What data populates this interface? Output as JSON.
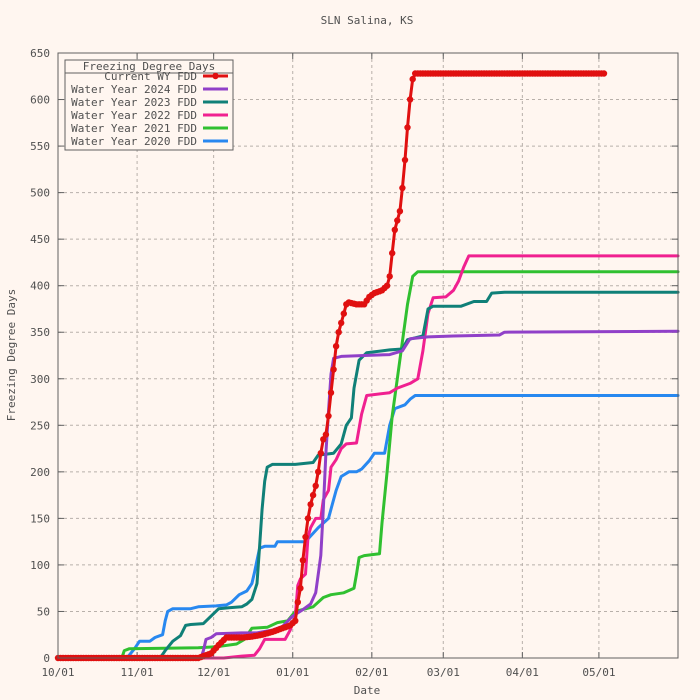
{
  "chart_data": {
    "type": "line",
    "title": "SLN Salina, KS",
    "xlabel": "Date",
    "ylabel": "Freezing Degree Days",
    "xlim": [
      "10/01",
      "06/01"
    ],
    "ylim": [
      0,
      650
    ],
    "yticks": [
      0,
      50,
      100,
      150,
      200,
      250,
      300,
      350,
      400,
      450,
      500,
      550,
      600,
      650
    ],
    "xticks": [
      {
        "label": "10/01",
        "day": 0
      },
      {
        "label": "11/01",
        "day": 31
      },
      {
        "label": "12/01",
        "day": 61
      },
      {
        "label": "01/01",
        "day": 92
      },
      {
        "label": "02/01",
        "day": 123
      },
      {
        "label": "03/01",
        "day": 151
      },
      {
        "label": "04/01",
        "day": 182
      },
      {
        "label": "05/01",
        "day": 212
      }
    ],
    "x_axis_end_day": 243,
    "grid": true,
    "legend": {
      "title": "Freezing Degree Days",
      "position": "top-left"
    },
    "series": [
      {
        "name": "Current WY FDD",
        "color": "#e01010",
        "markers": true,
        "points": [
          [
            0,
            0
          ],
          [
            55,
            0
          ],
          [
            60,
            5
          ],
          [
            63,
            14
          ],
          [
            66,
            22
          ],
          [
            72,
            22
          ],
          [
            76,
            23
          ],
          [
            80,
            25
          ],
          [
            84,
            28
          ],
          [
            88,
            32
          ],
          [
            91,
            35
          ],
          [
            93,
            40
          ],
          [
            94,
            60
          ],
          [
            95,
            75
          ],
          [
            96,
            105
          ],
          [
            97,
            130
          ],
          [
            98,
            150
          ],
          [
            99,
            165
          ],
          [
            100,
            175
          ],
          [
            101,
            185
          ],
          [
            102,
            200
          ],
          [
            103,
            220
          ],
          [
            104,
            235
          ],
          [
            105,
            240
          ],
          [
            106,
            260
          ],
          [
            107,
            285
          ],
          [
            108,
            310
          ],
          [
            109,
            335
          ],
          [
            110,
            350
          ],
          [
            111,
            360
          ],
          [
            112,
            370
          ],
          [
            113,
            380
          ],
          [
            114,
            382
          ],
          [
            117,
            380
          ],
          [
            120,
            380
          ],
          [
            122,
            388
          ],
          [
            124,
            392
          ],
          [
            127,
            395
          ],
          [
            129,
            400
          ],
          [
            130,
            410
          ],
          [
            131,
            435
          ],
          [
            132,
            460
          ],
          [
            133,
            470
          ],
          [
            134,
            480
          ],
          [
            135,
            505
          ],
          [
            136,
            535
          ],
          [
            137,
            570
          ],
          [
            138,
            600
          ],
          [
            139,
            622
          ],
          [
            140,
            628
          ],
          [
            160,
            628
          ],
          [
            180,
            628
          ],
          [
            210,
            628
          ],
          [
            214,
            628
          ]
        ]
      },
      {
        "name": "Water Year 2024 FDD",
        "color": "#9040c8",
        "markers": false,
        "points": [
          [
            0,
            0
          ],
          [
            56,
            0
          ],
          [
            57,
            8
          ],
          [
            58,
            20
          ],
          [
            60,
            22
          ],
          [
            62,
            26
          ],
          [
            72,
            27
          ],
          [
            78,
            27
          ],
          [
            84,
            30
          ],
          [
            88,
            34
          ],
          [
            92,
            45
          ],
          [
            96,
            52
          ],
          [
            99,
            58
          ],
          [
            101,
            70
          ],
          [
            103,
            110
          ],
          [
            104,
            160
          ],
          [
            105,
            220
          ],
          [
            106,
            265
          ],
          [
            107,
            305
          ],
          [
            108,
            322
          ],
          [
            111,
            324
          ],
          [
            120,
            325
          ],
          [
            130,
            326
          ],
          [
            135,
            330
          ],
          [
            138,
            343
          ],
          [
            145,
            345
          ],
          [
            155,
            346
          ],
          [
            173,
            347
          ],
          [
            175,
            350
          ],
          [
            243,
            351
          ]
        ]
      },
      {
        "name": "Water Year 2023 FDD",
        "color": "#108078",
        "markers": false,
        "points": [
          [
            0,
            0
          ],
          [
            40,
            0
          ],
          [
            42,
            8
          ],
          [
            45,
            18
          ],
          [
            48,
            24
          ],
          [
            50,
            35
          ],
          [
            52,
            36
          ],
          [
            57,
            37
          ],
          [
            60,
            45
          ],
          [
            63,
            53
          ],
          [
            67,
            54
          ],
          [
            72,
            55
          ],
          [
            74,
            58
          ],
          [
            76,
            63
          ],
          [
            78,
            80
          ],
          [
            79,
            120
          ],
          [
            80,
            160
          ],
          [
            81,
            190
          ],
          [
            82,
            205
          ],
          [
            84,
            208
          ],
          [
            93,
            208
          ],
          [
            100,
            210
          ],
          [
            102,
            218
          ],
          [
            108,
            220
          ],
          [
            111,
            230
          ],
          [
            113,
            250
          ],
          [
            115,
            258
          ],
          [
            116,
            290
          ],
          [
            118,
            320
          ],
          [
            121,
            328
          ],
          [
            130,
            331
          ],
          [
            135,
            332
          ],
          [
            137,
            342
          ],
          [
            143,
            346
          ],
          [
            145,
            375
          ],
          [
            147,
            378
          ],
          [
            158,
            378
          ],
          [
            163,
            383
          ],
          [
            168,
            383
          ],
          [
            170,
            392
          ],
          [
            175,
            393
          ],
          [
            243,
            393
          ]
        ]
      },
      {
        "name": "Water Year 2022 FDD",
        "color": "#f02090",
        "markers": false,
        "points": [
          [
            0,
            0
          ],
          [
            65,
            0
          ],
          [
            72,
            2
          ],
          [
            77,
            3
          ],
          [
            79,
            10
          ],
          [
            81,
            20
          ],
          [
            89,
            20
          ],
          [
            91,
            30
          ],
          [
            93,
            45
          ],
          [
            94,
            78
          ],
          [
            95,
            85
          ],
          [
            97,
            90
          ],
          [
            98,
            130
          ],
          [
            99,
            140
          ],
          [
            101,
            150
          ],
          [
            103,
            150
          ],
          [
            104,
            170
          ],
          [
            106,
            180
          ],
          [
            107,
            205
          ],
          [
            109,
            213
          ],
          [
            111,
            225
          ],
          [
            113,
            230
          ],
          [
            117,
            231
          ],
          [
            119,
            262
          ],
          [
            121,
            282
          ],
          [
            130,
            285
          ],
          [
            133,
            290
          ],
          [
            138,
            295
          ],
          [
            141,
            300
          ],
          [
            143,
            330
          ],
          [
            145,
            370
          ],
          [
            147,
            387
          ],
          [
            152,
            388
          ],
          [
            155,
            395
          ],
          [
            157,
            405
          ],
          [
            159,
            420
          ],
          [
            161,
            432
          ],
          [
            180,
            432
          ],
          [
            243,
            432
          ]
        ]
      },
      {
        "name": "Water Year 2021 FDD",
        "color": "#30c030",
        "markers": false,
        "points": [
          [
            0,
            0
          ],
          [
            25,
            0
          ],
          [
            26,
            8
          ],
          [
            28,
            10
          ],
          [
            55,
            11
          ],
          [
            62,
            12
          ],
          [
            70,
            15
          ],
          [
            73,
            20
          ],
          [
            76,
            32
          ],
          [
            82,
            33
          ],
          [
            86,
            38
          ],
          [
            90,
            40
          ],
          [
            93,
            50
          ],
          [
            100,
            55
          ],
          [
            104,
            65
          ],
          [
            107,
            68
          ],
          [
            112,
            70
          ],
          [
            116,
            75
          ],
          [
            117,
            90
          ],
          [
            118,
            108
          ],
          [
            120,
            110
          ],
          [
            126,
            112
          ],
          [
            127,
            145
          ],
          [
            129,
            200
          ],
          [
            131,
            260
          ],
          [
            133,
            300
          ],
          [
            135,
            340
          ],
          [
            137,
            380
          ],
          [
            139,
            410
          ],
          [
            141,
            415
          ],
          [
            160,
            415
          ],
          [
            243,
            415
          ]
        ]
      },
      {
        "name": "Water Year 2020 FDD",
        "color": "#2888f0",
        "markers": false,
        "points": [
          [
            0,
            0
          ],
          [
            27,
            0
          ],
          [
            30,
            10
          ],
          [
            32,
            18
          ],
          [
            36,
            18
          ],
          [
            38,
            22
          ],
          [
            41,
            25
          ],
          [
            42,
            40
          ],
          [
            43,
            50
          ],
          [
            45,
            53
          ],
          [
            52,
            53
          ],
          [
            55,
            55
          ],
          [
            62,
            56
          ],
          [
            66,
            57
          ],
          [
            68,
            60
          ],
          [
            71,
            68
          ],
          [
            74,
            72
          ],
          [
            76,
            80
          ],
          [
            77,
            92
          ],
          [
            78,
            105
          ],
          [
            79,
            118
          ],
          [
            81,
            120
          ],
          [
            85,
            120
          ],
          [
            86,
            125
          ],
          [
            93,
            125
          ],
          [
            97,
            125
          ],
          [
            98,
            128
          ],
          [
            102,
            140
          ],
          [
            106,
            150
          ],
          [
            107,
            160
          ],
          [
            109,
            180
          ],
          [
            111,
            195
          ],
          [
            114,
            200
          ],
          [
            117,
            200
          ],
          [
            119,
            203
          ],
          [
            122,
            212
          ],
          [
            124,
            220
          ],
          [
            128,
            220
          ],
          [
            130,
            250
          ],
          [
            132,
            268
          ],
          [
            136,
            272
          ],
          [
            138,
            278
          ],
          [
            140,
            282
          ],
          [
            160,
            282
          ],
          [
            243,
            282
          ]
        ]
      }
    ]
  }
}
